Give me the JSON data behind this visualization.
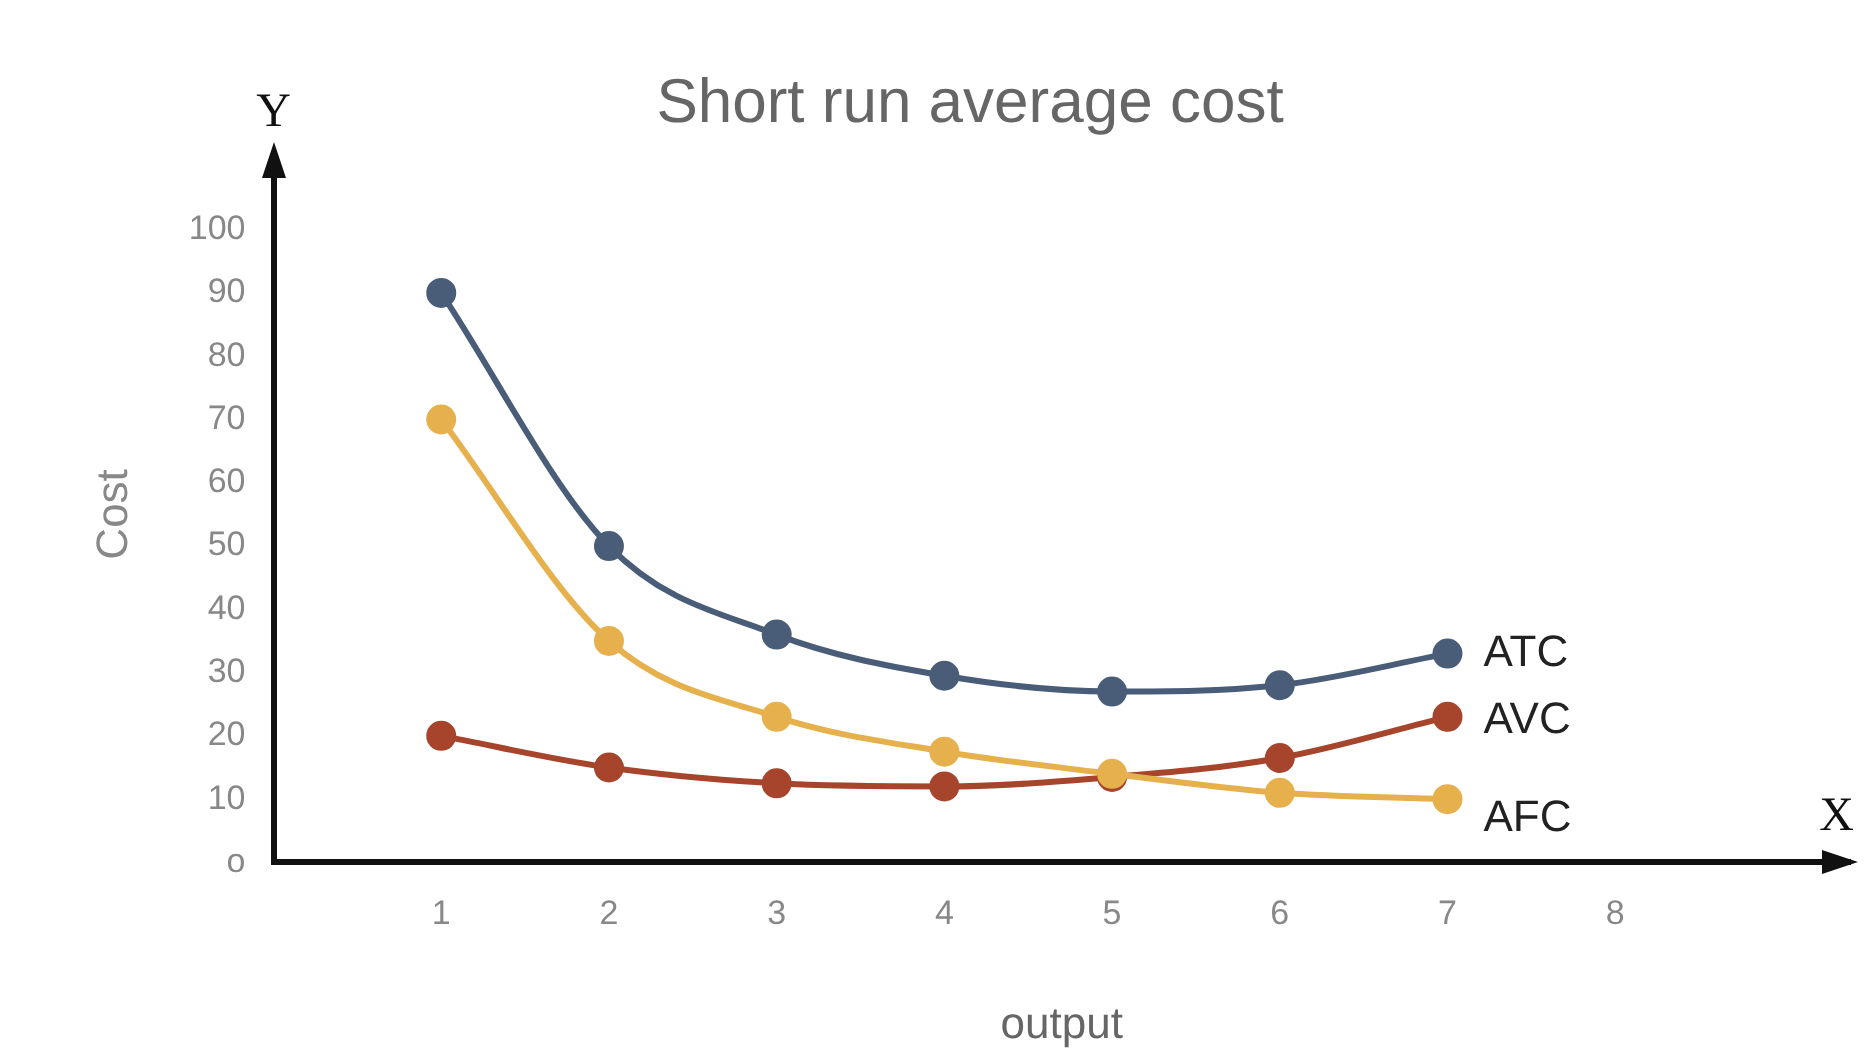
{
  "chart_data": {
    "type": "line",
    "title": "Short run average cost",
    "xlabel": "output",
    "ylabel": "Cost",
    "annotations": [
      "Y",
      "X"
    ],
    "x": [
      1,
      2,
      3,
      4,
      5,
      6,
      7
    ],
    "series": [
      {
        "name": "ATC",
        "color": "#4a5d78",
        "values": [
          90,
          50,
          36,
          29.5,
          27,
          28,
          33
        ]
      },
      {
        "name": "AVC",
        "color": "#a6442c",
        "values": [
          20,
          15,
          12.5,
          12,
          13.5,
          16.5,
          23
        ]
      },
      {
        "name": "AFC",
        "color": "#e6b04c",
        "values": [
          70,
          35,
          23,
          17.5,
          14,
          11,
          10
        ]
      }
    ],
    "xlim": [
      0,
      9.4
    ],
    "xticks": [
      1,
      2,
      3,
      4,
      5,
      6,
      7,
      8
    ],
    "ylim": [
      0,
      110
    ],
    "yticks": [
      {
        "value": 0,
        "label": "o"
      },
      10,
      20,
      30,
      40,
      50,
      60,
      70,
      80,
      90,
      100
    ],
    "grid": false,
    "legend": false,
    "marker": "circle",
    "line_style": "solid"
  }
}
